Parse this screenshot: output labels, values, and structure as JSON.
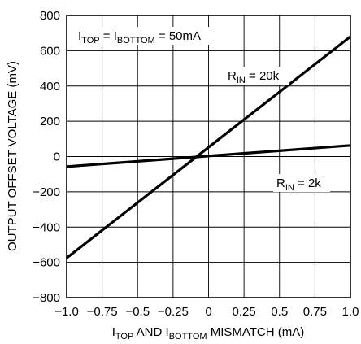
{
  "chart_data": {
    "type": "line",
    "xlabel": {
      "prefix": "I",
      "sub1": "TOP",
      "mid": " AND I",
      "sub2": "BOTTOM",
      "suffix": " MISMATCH (mA)"
    },
    "ylabel": "OUTPUT OFFSET VOLTAGE (mV)",
    "xlim": [
      -1.0,
      1.0
    ],
    "ylim": [
      -800,
      800
    ],
    "x_ticks": [
      -1.0,
      -0.75,
      -0.5,
      -0.25,
      0,
      0.25,
      0.5,
      0.75,
      1.0
    ],
    "x_tick_labels": [
      "−1.0",
      "−0.75",
      "−0.5",
      "−0.25",
      "0",
      "0.25",
      "0.5",
      "0.75",
      "1.0"
    ],
    "y_ticks": [
      -800,
      -600,
      -400,
      -200,
      0,
      200,
      400,
      600,
      800
    ],
    "y_tick_labels": [
      "−800",
      "−600",
      "−400",
      "−200",
      "0",
      "200",
      "400",
      "600",
      "800"
    ],
    "grid": true,
    "condition": {
      "p1": "I",
      "s1": "TOP",
      "p2": " = I",
      "s2": "BOTTOM",
      "p3": " = 50mA"
    },
    "series": [
      {
        "name": "20k",
        "label_prefix": "R",
        "label_sub": "IN",
        "label_suffix": " = 20k",
        "x": [
          -1.0,
          1.0
        ],
        "y": [
          -575,
          680
        ]
      },
      {
        "name": "2k",
        "label_prefix": "R",
        "label_sub": "IN",
        "label_suffix": " = 2k",
        "x": [
          -1.0,
          1.0
        ],
        "y": [
          -57,
          63
        ]
      }
    ]
  }
}
